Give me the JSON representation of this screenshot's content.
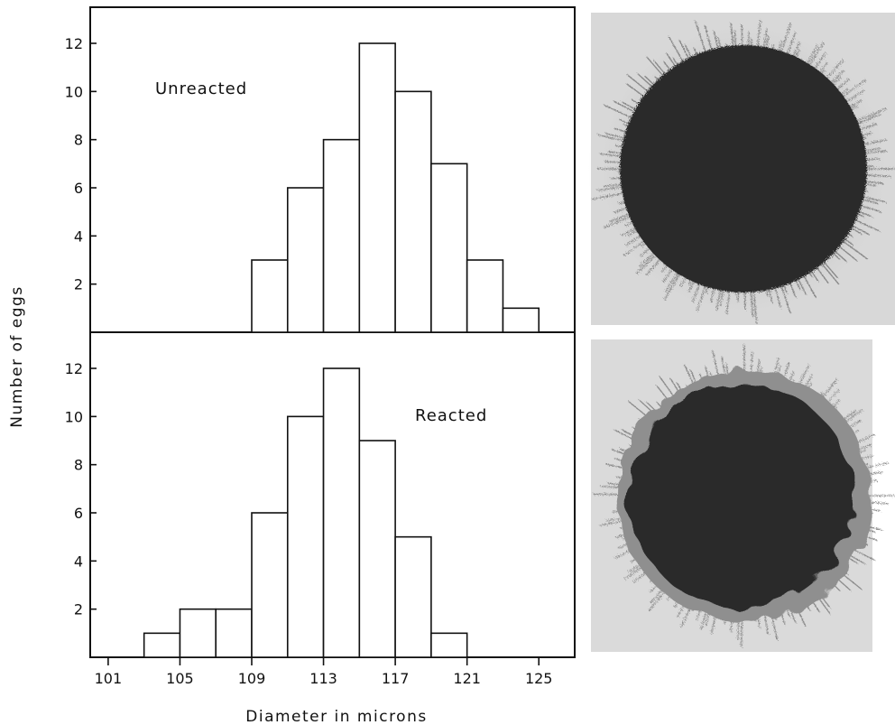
{
  "chart_data": [
    {
      "type": "bar",
      "label": "Unreacted",
      "bin_width": 2,
      "bins": [
        {
          "start": 109,
          "count": 3
        },
        {
          "start": 111,
          "count": 6
        },
        {
          "start": 113,
          "count": 8
        },
        {
          "start": 115,
          "count": 12
        },
        {
          "start": 117,
          "count": 10
        },
        {
          "start": 119,
          "count": 7
        },
        {
          "start": 121,
          "count": 3
        },
        {
          "start": 123,
          "count": 1
        }
      ],
      "y_ticks": [
        "2",
        "4",
        "6",
        "8",
        "10",
        "12"
      ],
      "xlim": [
        100,
        127
      ],
      "ylim": [
        0,
        13.5
      ]
    },
    {
      "type": "bar",
      "label": "Reacted",
      "bin_width": 2,
      "bins": [
        {
          "start": 103,
          "count": 1
        },
        {
          "start": 105,
          "count": 2
        },
        {
          "start": 107,
          "count": 2
        },
        {
          "start": 109,
          "count": 6
        },
        {
          "start": 111,
          "count": 10
        },
        {
          "start": 113,
          "count": 12
        },
        {
          "start": 115,
          "count": 9
        },
        {
          "start": 117,
          "count": 5
        },
        {
          "start": 119,
          "count": 1
        }
      ],
      "y_ticks": [
        "2",
        "4",
        "6",
        "8",
        "10",
        "12"
      ],
      "xlim": [
        100,
        127
      ],
      "ylim": [
        0,
        13.5
      ]
    }
  ],
  "x_ticks": [
    "101",
    "105",
    "109",
    "113",
    "117",
    "121",
    "125"
  ],
  "ylabel": "Number of eggs",
  "xlabel": "Diameter in microns",
  "photos": [
    {
      "name": "unreacted-egg-photo",
      "style": "smooth"
    },
    {
      "name": "reacted-egg-photo",
      "style": "wrinkled"
    }
  ]
}
